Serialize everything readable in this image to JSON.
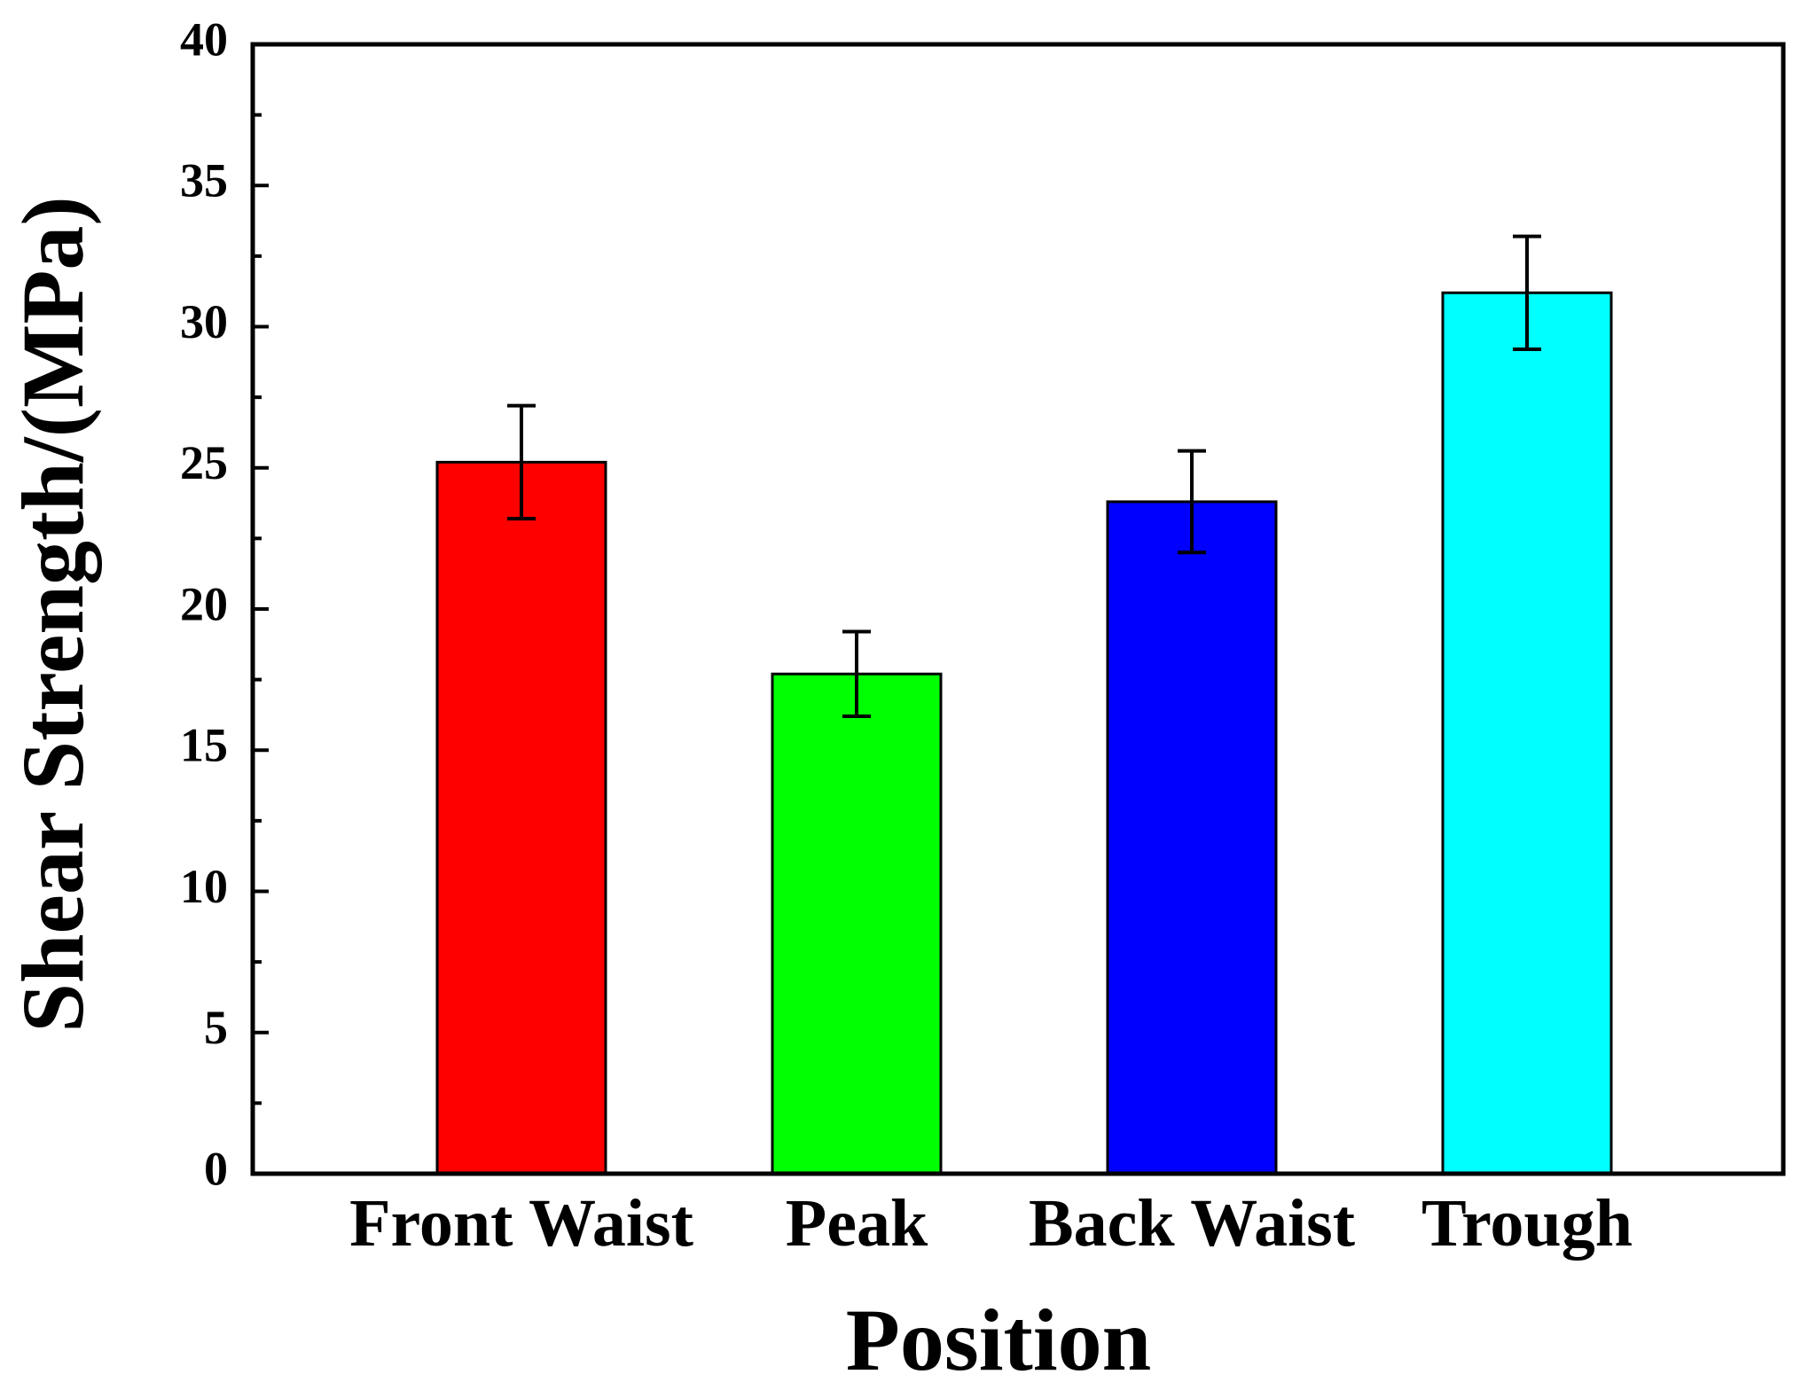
{
  "chart_data": {
    "type": "bar",
    "title": "",
    "xlabel": "Position",
    "ylabel": "Shear Strength/(MPa)",
    "categories": [
      "Front Waist",
      "Peak",
      "Back Waist",
      "Trough"
    ],
    "values": [
      25.2,
      17.7,
      23.8,
      31.2
    ],
    "errors": [
      2.0,
      1.5,
      1.8,
      2.0
    ],
    "colors": [
      "#ff0000",
      "#00ff00",
      "#0000ff",
      "#00ffff"
    ],
    "ylim": [
      0,
      40
    ],
    "yticks": [
      0,
      5,
      10,
      15,
      20,
      25,
      30,
      35,
      40
    ],
    "ytick_labels": [
      "0",
      "5",
      "10",
      "15",
      "20",
      "25",
      "30",
      "35",
      "40"
    ],
    "grid": false,
    "legend": false
  }
}
